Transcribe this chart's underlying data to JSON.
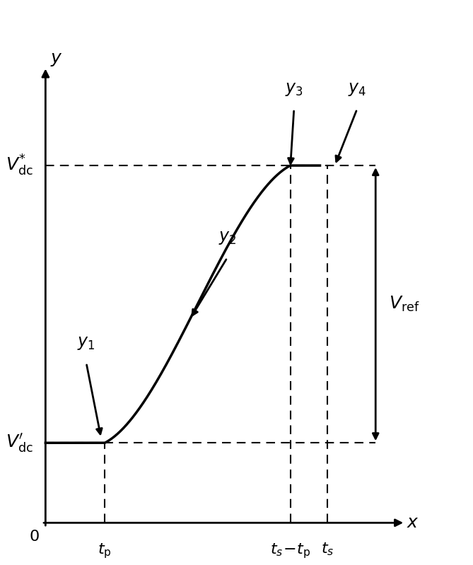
{
  "background_color": "#ffffff",
  "curve_color": "#000000",
  "vdc_star": 0.76,
  "vdc_prime": 0.17,
  "t_p": 0.16,
  "t_s_minus_tp": 0.66,
  "t_s": 0.76,
  "x_max": 0.93,
  "y_max": 0.93,
  "label_vdc_star": "$V_{\\mathrm{dc}}^{*}$",
  "label_vdc_prime": "$V_{\\mathrm{dc}}^{\\prime}$",
  "label_vref": "$V_{\\mathrm{ref}}$",
  "label_tp": "$t_{\\mathrm{p}}$",
  "label_ts_minus_tp": "$t_{s}\\!-\\!t_{\\mathrm{p}}$",
  "label_ts": "$t_{s}$",
  "label_x": "$x$",
  "label_y": "$y$",
  "label_0": "0",
  "label_y1": "$y_1$",
  "label_y2": "$y_2$",
  "label_y3": "$y_3$",
  "label_y4": "$y_4$",
  "fontsize_main": 18,
  "fontsize_tick": 16,
  "fontsize_annot": 17,
  "lw_axis": 2.0,
  "lw_curve": 2.5,
  "lw_dashed": 1.5,
  "lw_arrow": 2.0
}
